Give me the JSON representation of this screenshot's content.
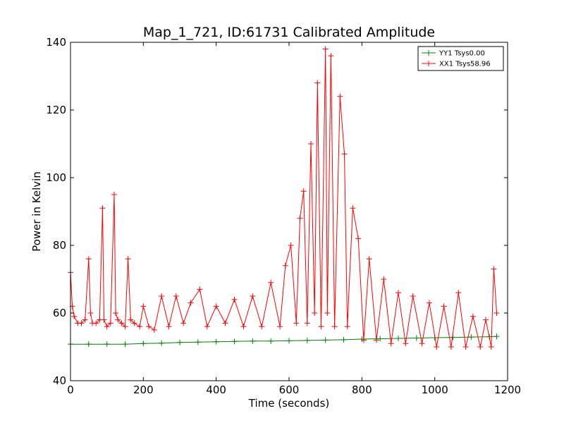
{
  "chart_data": {
    "type": "line",
    "title": "Map_1_721, ID:61731 Calibrated Amplitude",
    "xlabel": "Time (seconds)",
    "ylabel": "Power in Kelvin",
    "xlim": [
      0,
      1200
    ],
    "ylim": [
      40,
      140
    ],
    "xticks": [
      0,
      200,
      400,
      600,
      800,
      1000,
      1200
    ],
    "yticks": [
      40,
      60,
      80,
      100,
      120,
      140
    ],
    "grid": false,
    "legend_position": "top-right",
    "marker": "plus",
    "series": [
      {
        "name": "YY1 Tsys0.00",
        "color": "#008000",
        "x": [
          0,
          50,
          100,
          150,
          200,
          250,
          300,
          350,
          400,
          450,
          500,
          550,
          600,
          650,
          700,
          750,
          800,
          850,
          900,
          950,
          1000,
          1050,
          1100,
          1150,
          1170
        ],
        "y": [
          50.8,
          50.8,
          50.8,
          50.8,
          51.0,
          51.1,
          51.3,
          51.4,
          51.5,
          51.6,
          51.7,
          51.7,
          51.8,
          51.9,
          52.0,
          52.1,
          52.3,
          52.4,
          52.5,
          52.6,
          52.7,
          52.8,
          52.9,
          53.0,
          53.1
        ]
      },
      {
        "name": "XX1 Tsys58.96",
        "color": "#ff0000",
        "x": [
          0,
          5,
          10,
          20,
          30,
          40,
          50,
          55,
          60,
          70,
          80,
          88,
          92,
          100,
          110,
          120,
          124,
          130,
          140,
          150,
          158,
          165,
          175,
          190,
          200,
          215,
          230,
          250,
          270,
          290,
          310,
          330,
          355,
          375,
          400,
          425,
          450,
          475,
          500,
          525,
          550,
          575,
          590,
          605,
          620,
          630,
          640,
          650,
          660,
          670,
          678,
          688,
          700,
          705,
          715,
          725,
          740,
          752,
          760,
          775,
          790,
          805,
          820,
          840,
          860,
          880,
          900,
          920,
          940,
          965,
          985,
          1005,
          1025,
          1045,
          1065,
          1085,
          1105,
          1125,
          1140,
          1155,
          1162,
          1170
        ],
        "y": [
          72,
          62,
          59,
          57,
          57,
          58,
          76,
          60,
          57,
          57,
          58,
          91,
          58,
          56,
          57,
          95,
          60,
          58,
          57,
          56,
          76,
          58,
          57,
          56,
          62,
          56,
          55,
          65,
          56,
          65,
          57,
          63,
          67,
          56,
          62,
          57,
          64,
          56,
          65,
          56,
          69,
          56,
          74,
          80,
          57,
          88,
          96,
          57,
          110,
          60,
          128,
          56,
          138,
          60,
          136,
          56,
          124,
          107,
          56,
          91,
          82,
          52,
          76,
          52,
          70,
          51,
          66,
          51,
          65,
          51,
          63,
          50,
          62,
          50,
          66,
          50,
          59,
          50,
          58,
          50,
          73,
          60
        ]
      }
    ]
  }
}
